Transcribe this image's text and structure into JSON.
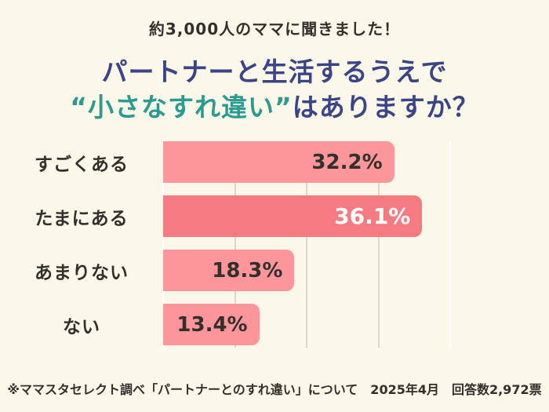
{
  "page": {
    "header": "約3,000人のママに聞きました！",
    "title_line1": "パートナーと生活するうえで",
    "title_line2_highlight": "“小さなすれ違い”",
    "title_line2_rest": "はありますか？",
    "footnote": "※ママスタセレクト調べ「パートナーとのすれ違い」について　2025年4月　回答数2,972票"
  },
  "colors": {
    "background": "#FBF8E9",
    "navy": "#3A4487",
    "teal": "#2B9A90",
    "bar_pink": "#FC969B",
    "bar_coral": "#F57B80",
    "gridline_inner": "#DAD7CA",
    "gridline_edge": "#FFFFFF",
    "text_dark": "#332F2D",
    "value_on_coral": "#FFFFFF"
  },
  "chart_data": {
    "type": "bar",
    "orientation": "horizontal",
    "title": "パートナーと生活するうえで“小さなすれ違い”はありますか？",
    "subtitle": "約3,000人のママに聞きました！",
    "categories": [
      "すごくある",
      "たまにある",
      "あまりない",
      "ない"
    ],
    "values": [
      32.2,
      36.1,
      18.3,
      13.4
    ],
    "value_labels": [
      "32.2%",
      "36.1%",
      "18.3%",
      "13.4%"
    ],
    "highlight_index": 1,
    "xlim": [
      0,
      40
    ],
    "gridline_step": 10,
    "grid": true,
    "legend": false,
    "source_note": "※ママスタセレクト調べ「パートナーとのすれ違い」について　2025年4月　回答数2,972票"
  }
}
